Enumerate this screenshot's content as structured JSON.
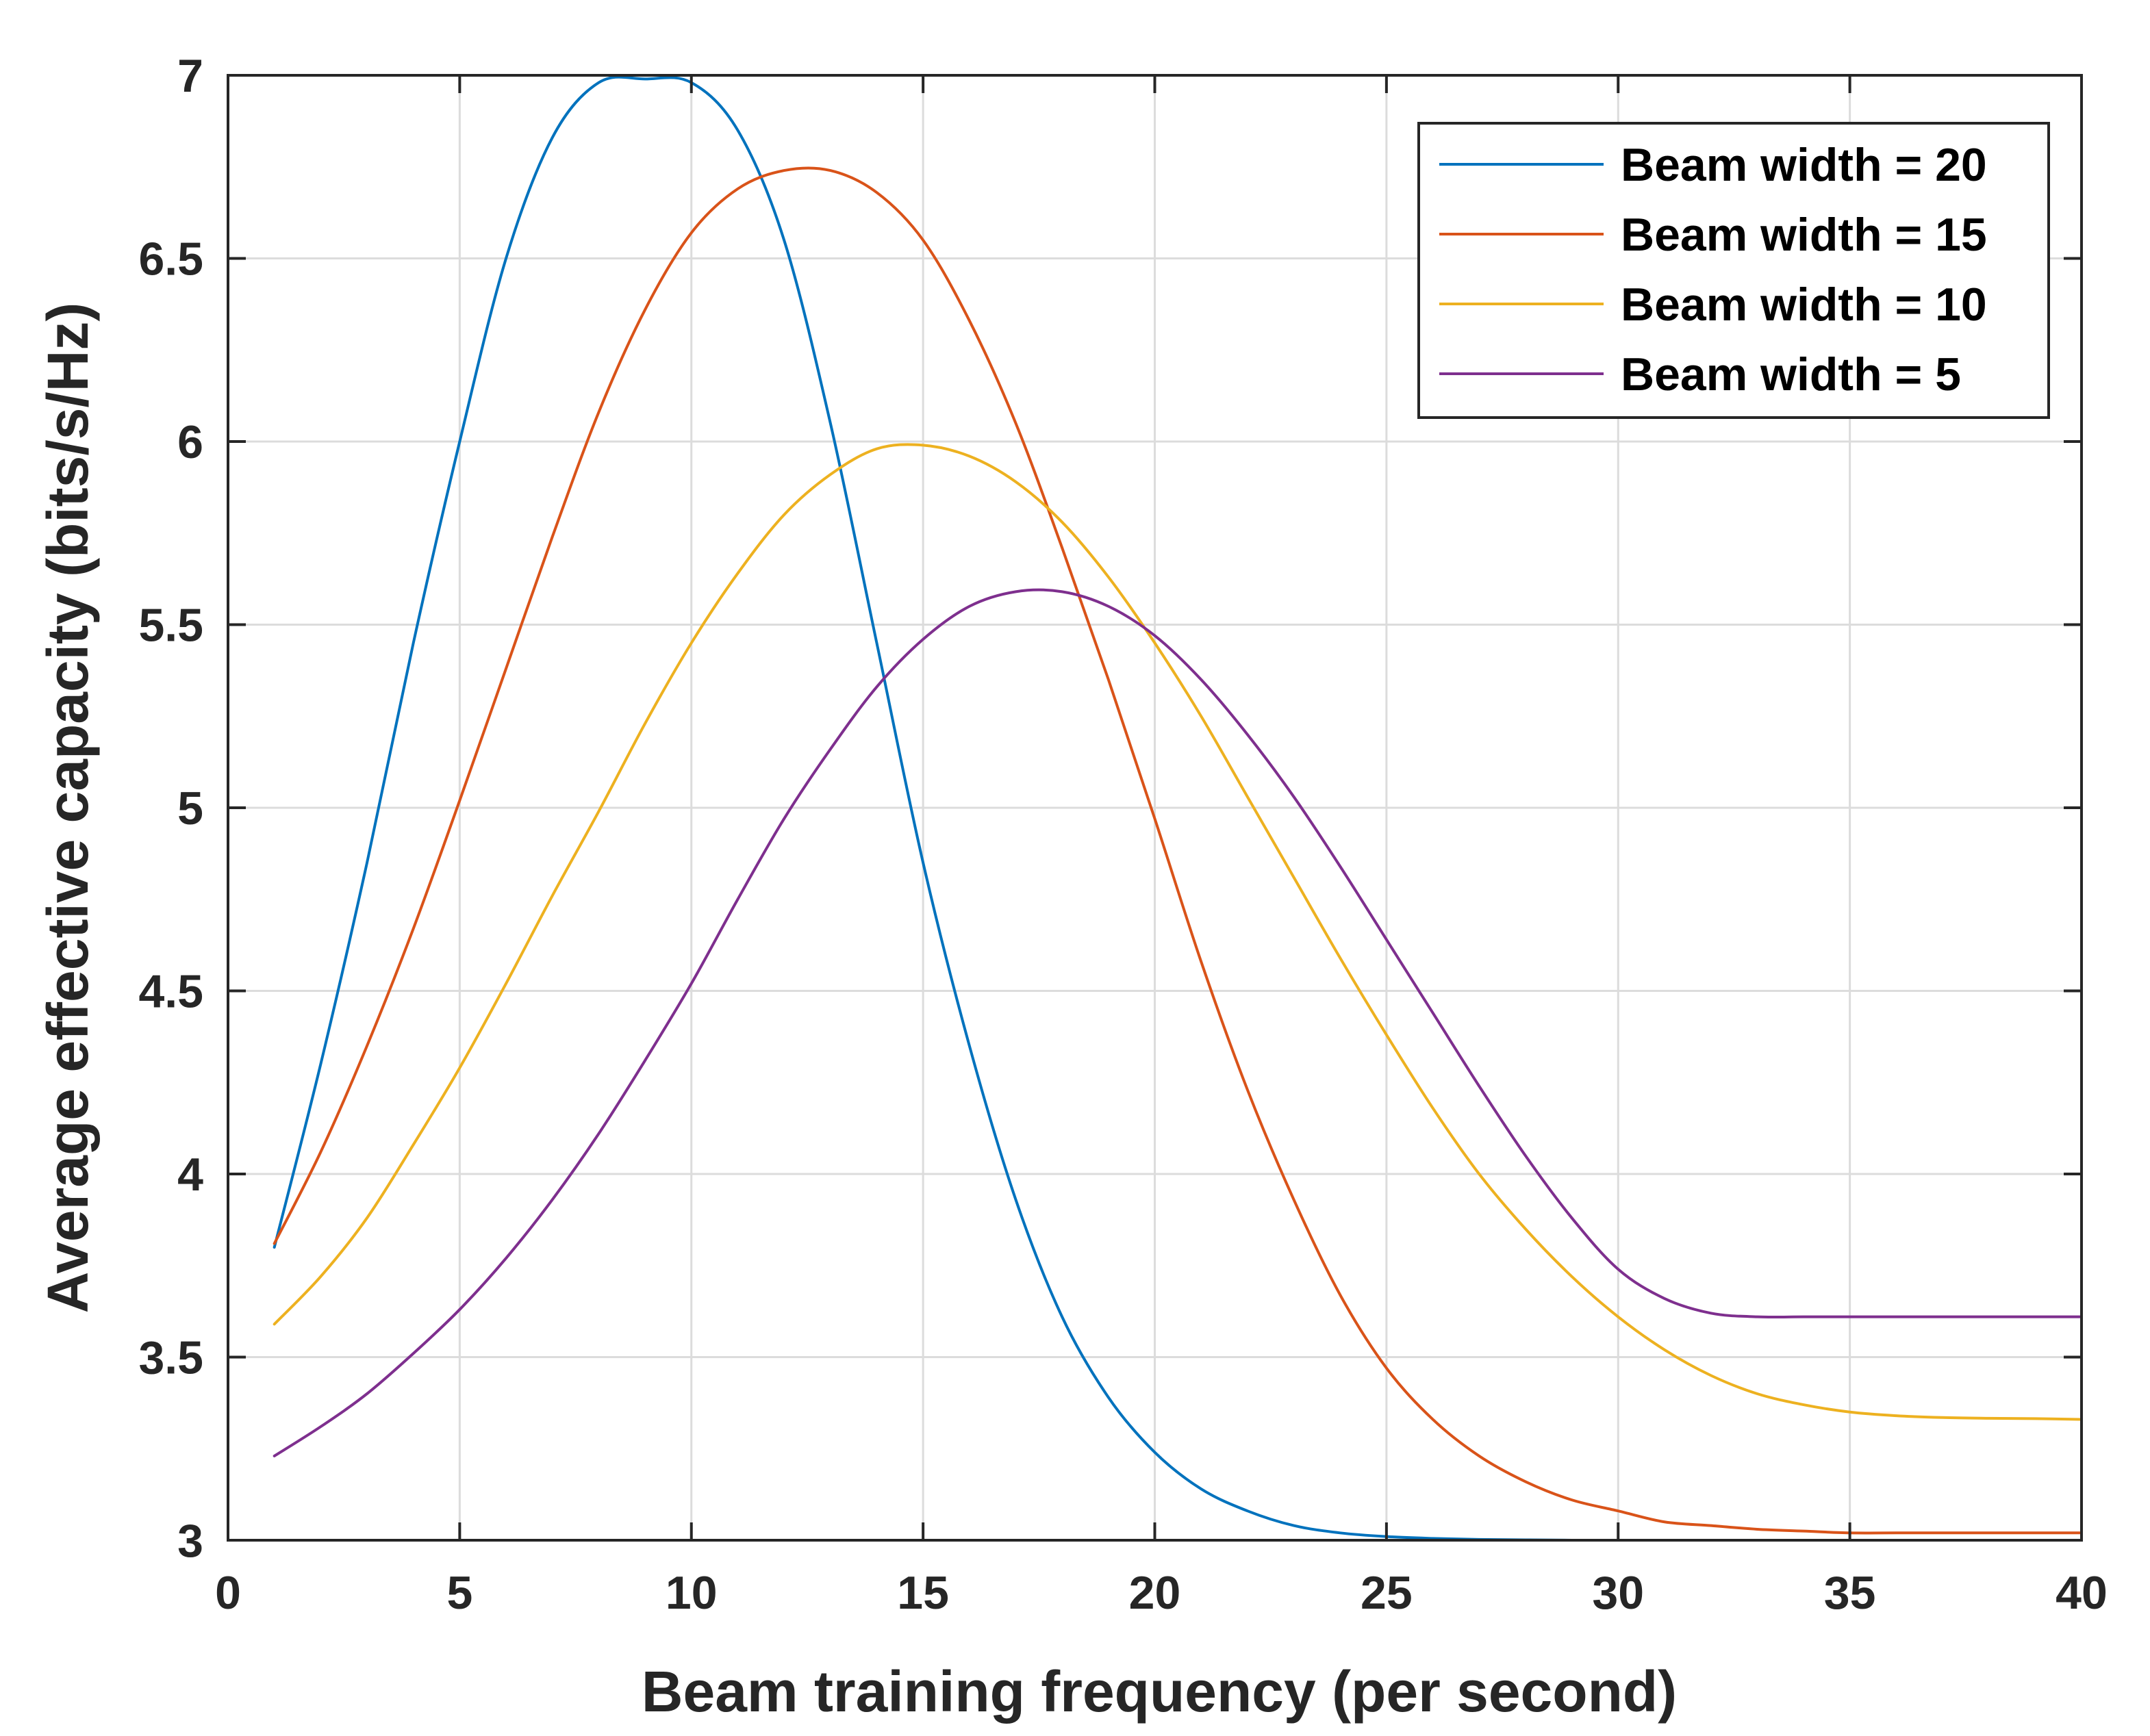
{
  "chart_data": {
    "type": "line",
    "title": "",
    "xlabel": "Beam training frequency (per second)",
    "ylabel": "Average effective capacity (bits/s/Hz)",
    "xlim": [
      0,
      40
    ],
    "ylim": [
      3,
      7
    ],
    "xticks": [
      "0",
      "5",
      "10",
      "15",
      "20",
      "25",
      "30",
      "35",
      "40"
    ],
    "yticks": [
      "3",
      "3.5",
      "4",
      "4.5",
      "5",
      "5.5",
      "6",
      "6.5",
      "7"
    ],
    "grid": true,
    "legend_position": "top-right",
    "x": [
      1,
      2,
      3,
      4,
      5,
      6,
      7,
      8,
      9,
      10,
      11,
      12,
      13,
      14,
      15,
      16,
      17,
      18,
      19,
      20,
      21,
      22,
      23,
      24,
      25,
      26,
      27,
      28,
      29,
      30,
      31,
      32,
      33,
      34,
      35,
      36,
      37,
      38,
      39,
      40
    ],
    "series": [
      {
        "name": "Beam width = 20",
        "color": "#0072BD",
        "values": [
          3.8,
          4.3,
          4.85,
          5.45,
          6.0,
          6.5,
          6.83,
          6.98,
          6.99,
          6.98,
          6.85,
          6.55,
          6.05,
          5.45,
          4.85,
          4.35,
          3.93,
          3.61,
          3.39,
          3.24,
          3.14,
          3.08,
          3.04,
          3.02,
          3.01,
          3.005,
          3.002,
          3.001,
          3.0,
          3.0,
          3.0,
          3.0,
          3.0,
          3.0,
          3.0,
          3.0,
          3.0,
          3.0,
          3.0,
          3.0
        ]
      },
      {
        "name": "Beam width = 15",
        "color": "#D95319",
        "values": [
          3.81,
          4.06,
          4.35,
          4.67,
          5.02,
          5.38,
          5.74,
          6.08,
          6.36,
          6.57,
          6.69,
          6.74,
          6.74,
          6.68,
          6.55,
          6.33,
          6.05,
          5.71,
          5.35,
          4.97,
          4.58,
          4.23,
          3.93,
          3.67,
          3.47,
          3.33,
          3.23,
          3.16,
          3.11,
          3.08,
          3.05,
          3.04,
          3.03,
          3.025,
          3.02,
          3.02,
          3.02,
          3.02,
          3.02,
          3.02
        ]
      },
      {
        "name": "Beam width = 10",
        "color": "#EDB120",
        "values": [
          3.59,
          3.72,
          3.88,
          4.08,
          4.29,
          4.52,
          4.76,
          4.99,
          5.23,
          5.45,
          5.64,
          5.8,
          5.91,
          5.98,
          5.99,
          5.96,
          5.89,
          5.78,
          5.63,
          5.45,
          5.25,
          5.03,
          4.81,
          4.59,
          4.38,
          4.18,
          4.0,
          3.85,
          3.72,
          3.61,
          3.52,
          3.45,
          3.4,
          3.37,
          3.35,
          3.34,
          3.335,
          3.333,
          3.332,
          3.33
        ]
      },
      {
        "name": "Beam width = 5",
        "color": "#7E2F8E",
        "values": [
          3.23,
          3.31,
          3.4,
          3.51,
          3.63,
          3.77,
          3.93,
          4.11,
          4.31,
          4.52,
          4.75,
          4.97,
          5.16,
          5.33,
          5.46,
          5.55,
          5.59,
          5.59,
          5.55,
          5.47,
          5.35,
          5.2,
          5.03,
          4.84,
          4.64,
          4.44,
          4.24,
          4.05,
          3.88,
          3.74,
          3.66,
          3.62,
          3.61,
          3.61,
          3.61,
          3.61,
          3.61,
          3.61,
          3.61,
          3.61
        ]
      }
    ]
  }
}
